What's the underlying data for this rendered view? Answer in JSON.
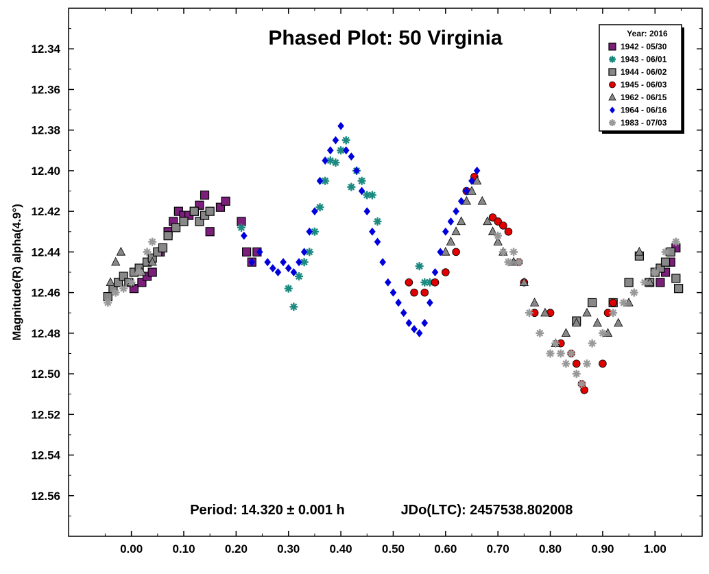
{
  "chart_data": {
    "type": "scatter",
    "title": "Phased Plot: 50 Virginia",
    "xlabel": "",
    "ylabel": "Magnitude(R) alpha(4.9°)",
    "xlim": [
      -0.12,
      1.09
    ],
    "ylim": [
      12.58,
      12.32
    ],
    "y_inverted": true,
    "x_ticks": [
      0.0,
      0.1,
      0.2,
      0.3,
      0.4,
      0.5,
      0.6,
      0.7,
      0.8,
      0.9,
      1.0
    ],
    "x_tick_labels": [
      "0.00",
      "0.10",
      "0.20",
      "0.30",
      "0.40",
      "0.50",
      "0.60",
      "0.70",
      "0.80",
      "0.90",
      "1.00"
    ],
    "y_ticks": [
      12.34,
      12.36,
      12.38,
      12.4,
      12.42,
      12.44,
      12.46,
      12.48,
      12.5,
      12.52,
      12.54,
      12.56
    ],
    "y_tick_labels": [
      "12.34",
      "12.36",
      "12.38",
      "12.40",
      "12.42",
      "12.44",
      "12.46",
      "12.48",
      "12.50",
      "12.52",
      "12.54",
      "12.56"
    ],
    "grid": false,
    "legend_position": "top-right",
    "legend_title": "Year: 2016",
    "annotations": {
      "period": "Period: 14.320 ± 0.001 h",
      "epoch": "JDo(LTC): 2457538.802008"
    },
    "series": [
      {
        "name": "1942 - 05/30",
        "marker": "square",
        "color": "#7b1f7b",
        "x": [
          0.005,
          0.02,
          0.03,
          0.04,
          0.055,
          0.07,
          0.08,
          0.09,
          0.1,
          0.11,
          0.12,
          0.13,
          0.14,
          0.15,
          0.17,
          0.18,
          0.21,
          0.22,
          0.23,
          0.24,
          1.01,
          1.02,
          1.03,
          1.04
        ],
        "y": [
          12.458,
          12.455,
          12.452,
          12.45,
          12.44,
          12.43,
          12.425,
          12.42,
          12.422,
          12.422,
          12.42,
          12.417,
          12.412,
          12.43,
          12.418,
          12.415,
          12.425,
          12.44,
          12.445,
          12.44,
          12.455,
          12.45,
          12.445,
          12.438
        ]
      },
      {
        "name": "1943 - 06/01",
        "marker": "asterisk",
        "color": "#1a8a80",
        "x": [
          0.21,
          0.3,
          0.31,
          0.32,
          0.33,
          0.34,
          0.35,
          0.36,
          0.37,
          0.38,
          0.39,
          0.4,
          0.41,
          0.42,
          0.43,
          0.44,
          0.45,
          0.46,
          0.47,
          0.55,
          0.56,
          0.57
        ],
        "y": [
          12.428,
          12.458,
          12.467,
          12.452,
          12.445,
          12.44,
          12.43,
          12.418,
          12.405,
          12.395,
          12.396,
          12.39,
          12.385,
          12.408,
          12.4,
          12.405,
          12.412,
          12.412,
          12.425,
          12.447,
          12.455,
          12.455
        ]
      },
      {
        "name": "1944 - 06/02",
        "marker": "square",
        "color": "#888888",
        "x": [
          -0.045,
          -0.035,
          -0.025,
          -0.015,
          -0.005,
          0.005,
          0.015,
          0.03,
          0.04,
          0.05,
          0.06,
          0.07,
          0.085,
          0.1,
          0.12,
          0.13,
          0.14,
          0.15,
          0.85,
          0.88,
          0.92,
          0.95,
          0.97,
          0.99,
          1.0,
          1.01,
          1.02,
          1.03,
          1.04,
          1.045
        ],
        "y": [
          12.462,
          12.458,
          12.455,
          12.452,
          12.455,
          12.45,
          12.448,
          12.445,
          12.443,
          12.44,
          12.438,
          12.432,
          12.428,
          12.425,
          12.42,
          12.425,
          12.422,
          12.42,
          12.474,
          12.465,
          12.465,
          12.455,
          12.442,
          12.455,
          12.45,
          12.448,
          12.445,
          12.44,
          12.453,
          12.458
        ]
      },
      {
        "name": "1945 - 06/03",
        "marker": "circle",
        "color": "#e00000",
        "x": [
          0.53,
          0.54,
          0.56,
          0.58,
          0.6,
          0.62,
          0.64,
          0.655,
          0.69,
          0.7,
          0.71,
          0.72,
          0.74,
          0.75,
          0.77,
          0.8,
          0.82,
          0.84,
          0.85,
          0.86,
          0.865,
          0.9,
          0.91,
          0.92
        ],
        "y": [
          12.455,
          12.46,
          12.46,
          12.455,
          12.45,
          12.44,
          12.41,
          12.403,
          12.423,
          12.425,
          12.427,
          12.43,
          12.445,
          12.455,
          12.47,
          12.47,
          12.485,
          12.49,
          12.495,
          12.505,
          12.508,
          12.495,
          12.47,
          12.465
        ]
      },
      {
        "name": "1962 - 06/15",
        "marker": "triangle",
        "color": "#888888",
        "x": [
          -0.04,
          -0.03,
          -0.02,
          0.0,
          0.02,
          0.04,
          0.6,
          0.61,
          0.62,
          0.63,
          0.64,
          0.65,
          0.66,
          0.67,
          0.68,
          0.69,
          0.7,
          0.71,
          0.73,
          0.75,
          0.77,
          0.79,
          0.81,
          0.83,
          0.85,
          0.87,
          0.89,
          0.91,
          0.93,
          0.95,
          0.97,
          0.99
        ],
        "y": [
          12.455,
          12.445,
          12.44,
          12.455,
          12.45,
          12.445,
          12.44,
          12.435,
          12.43,
          12.425,
          12.415,
          12.41,
          12.405,
          12.415,
          12.425,
          12.43,
          12.435,
          12.44,
          12.445,
          12.455,
          12.465,
          12.47,
          12.485,
          12.48,
          12.475,
          12.47,
          12.475,
          12.48,
          12.475,
          12.465,
          12.44,
          12.455
        ]
      },
      {
        "name": "1964 - 06/16",
        "marker": "diamond",
        "color": "#0000dd",
        "x": [
          0.215,
          0.23,
          0.245,
          0.26,
          0.27,
          0.28,
          0.29,
          0.3,
          0.31,
          0.32,
          0.33,
          0.34,
          0.35,
          0.36,
          0.37,
          0.38,
          0.39,
          0.4,
          0.41,
          0.42,
          0.43,
          0.44,
          0.45,
          0.46,
          0.47,
          0.48,
          0.49,
          0.5,
          0.51,
          0.52,
          0.53,
          0.54,
          0.55,
          0.56,
          0.57,
          0.58,
          0.59,
          0.6,
          0.61,
          0.62,
          0.63,
          0.64,
          0.65,
          0.66
        ],
        "y": [
          12.432,
          12.445,
          12.44,
          12.445,
          12.448,
          12.45,
          12.445,
          12.448,
          12.45,
          12.445,
          12.44,
          12.43,
          12.42,
          12.405,
          12.395,
          12.39,
          12.385,
          12.378,
          12.39,
          12.393,
          12.4,
          12.41,
          12.42,
          12.43,
          12.435,
          12.445,
          12.455,
          12.46,
          12.465,
          12.47,
          12.475,
          12.478,
          12.48,
          12.475,
          12.465,
          12.45,
          12.44,
          12.43,
          12.425,
          12.42,
          12.415,
          12.41,
          12.405,
          12.4
        ]
      },
      {
        "name": "1983 - 07/03",
        "marker": "asterisk",
        "color": "#999999",
        "x": [
          -0.045,
          -0.03,
          -0.015,
          0.0,
          0.015,
          0.03,
          0.04,
          0.7,
          0.71,
          0.72,
          0.73,
          0.74,
          0.76,
          0.78,
          0.8,
          0.81,
          0.82,
          0.83,
          0.84,
          0.85,
          0.86,
          0.87,
          0.88,
          0.9,
          0.92,
          0.94,
          0.96,
          0.98,
          1.0,
          1.02,
          1.04
        ],
        "y": [
          12.465,
          12.46,
          12.458,
          12.455,
          12.45,
          12.44,
          12.435,
          12.432,
          12.44,
          12.445,
          12.44,
          12.445,
          12.47,
          12.48,
          12.49,
          12.485,
          12.49,
          12.495,
          12.49,
          12.5,
          12.505,
          12.495,
          12.485,
          12.48,
          12.47,
          12.465,
          12.46,
          12.455,
          12.45,
          12.44,
          12.435
        ]
      }
    ]
  }
}
